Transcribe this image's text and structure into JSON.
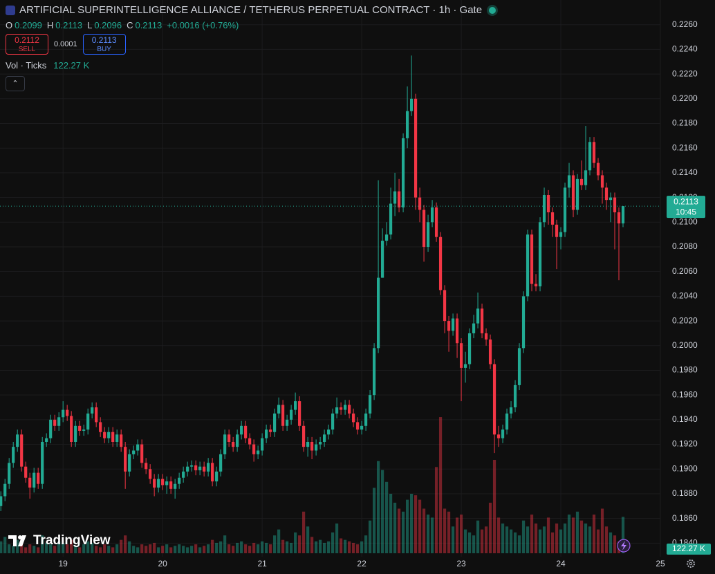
{
  "chart_data": {
    "type": "candlestick",
    "title": "ARTIFICIAL SUPERINTELLIGENCE ALLIANCE / TETHERUS PERPETUAL CONTRACT · 1h · Gate",
    "ohlc_labels": [
      "O",
      "H",
      "L",
      "C"
    ],
    "change": "+0.0016 (+0.76%)",
    "quote": {
      "sell": 0.2112,
      "sell_label": "SELL",
      "spread": 0.0001,
      "buy": 0.2113,
      "buy_label": "BUY"
    },
    "countdown": "10:45",
    "logo": "TradingView",
    "up_color": "#22ab94",
    "down_color": "#f23645",
    "grid": true,
    "x": [
      -15,
      -14,
      -13,
      -12,
      -11,
      -10,
      -9,
      -8,
      -7,
      -6,
      -5,
      -4,
      -3,
      -2,
      -1,
      0,
      1,
      2,
      3,
      4,
      5,
      6,
      7,
      8,
      9,
      10,
      11,
      12,
      13,
      14,
      15,
      16,
      17,
      18,
      19,
      20,
      21,
      22,
      23,
      24,
      25,
      26,
      27,
      28,
      29,
      30,
      31,
      32,
      33,
      34,
      35,
      36,
      37,
      38,
      39,
      40,
      41,
      42,
      43,
      44,
      45,
      46,
      47,
      48,
      49,
      50,
      51,
      52,
      53,
      54,
      55,
      56,
      57,
      58,
      59,
      60,
      61,
      62,
      63,
      64,
      65,
      66,
      67,
      68,
      69,
      70,
      71,
      72,
      73,
      74,
      75,
      76,
      77,
      78,
      79,
      80,
      81,
      82,
      83,
      84,
      85,
      86,
      87,
      88,
      89,
      90,
      91,
      92,
      93,
      94,
      95,
      96,
      97,
      98,
      99,
      100,
      101,
      102,
      103,
      104,
      105,
      106,
      107,
      108,
      109,
      110,
      111,
      112,
      113,
      114,
      115,
      116,
      117,
      118,
      119,
      120,
      121,
      122,
      123,
      124,
      125,
      126,
      127,
      128,
      129,
      130,
      131,
      132,
      133,
      134,
      135
    ],
    "open": [
      0.187,
      0.1878,
      0.1888,
      0.1905,
      0.1918,
      0.1928,
      0.1902,
      0.1893,
      0.1885,
      0.1897,
      0.1888,
      0.1922,
      0.1925,
      0.194,
      0.1935,
      0.1942,
      0.1948,
      0.1943,
      0.1922,
      0.1935,
      0.1931,
      0.1932,
      0.1945,
      0.195,
      0.1938,
      0.193,
      0.1925,
      0.193,
      0.1922,
      0.1928,
      0.1918,
      0.1898,
      0.1912,
      0.1915,
      0.192,
      0.1905,
      0.19,
      0.1892,
      0.1885,
      0.1892,
      0.1887,
      0.189,
      0.1884,
      0.1888,
      0.1893,
      0.1898,
      0.1902,
      0.1903,
      0.1899,
      0.1902,
      0.1898,
      0.1905,
      0.189,
      0.1898,
      0.1912,
      0.1928,
      0.1922,
      0.1918,
      0.1928,
      0.1935,
      0.1925,
      0.192,
      0.1912,
      0.1915,
      0.1925,
      0.1932,
      0.193,
      0.1945,
      0.1952,
      0.1935,
      0.194,
      0.1948,
      0.1955,
      0.1935,
      0.1918,
      0.1922,
      0.1915,
      0.192,
      0.1922,
      0.1928,
      0.1932,
      0.1945,
      0.195,
      0.1948,
      0.1952,
      0.1945,
      0.1938,
      0.1932,
      0.1935,
      0.1945,
      0.196,
      0.1998,
      0.2055,
      0.2085,
      0.209,
      0.2115,
      0.2125,
      0.2112,
      0.2168,
      0.219,
      0.22,
      0.212,
      0.211,
      0.208,
      0.21,
      0.2112,
      0.2088,
      0.2045,
      0.202,
      0.2012,
      0.2022,
      0.2002,
      0.1982,
      0.1985,
      0.201,
      0.2018,
      0.203,
      0.201,
      0.2005,
      0.1985,
      0.1928,
      0.1925,
      0.1932,
      0.1945,
      0.195,
      0.1968,
      0.1998,
      0.204,
      0.209,
      0.205,
      0.2048,
      0.21,
      0.2122,
      0.2108,
      0.2098,
      0.2088,
      0.2092,
      0.2128,
      0.2138,
      0.211,
      0.2135,
      0.213,
      0.2142,
      0.2165,
      0.2148,
      0.2138,
      0.2128,
      0.2118,
      0.212,
      0.2108,
      0.2099
    ],
    "high": [
      0.1882,
      0.1892,
      0.1909,
      0.1922,
      0.1932,
      0.1932,
      0.1906,
      0.1897,
      0.1901,
      0.1901,
      0.1926,
      0.1929,
      0.1944,
      0.1944,
      0.1946,
      0.1955,
      0.1952,
      0.1947,
      0.1939,
      0.1939,
      0.1936,
      0.1949,
      0.1954,
      0.1954,
      0.1942,
      0.1934,
      0.1934,
      0.1934,
      0.1932,
      0.1932,
      0.1922,
      0.1916,
      0.1919,
      0.1924,
      0.1924,
      0.1909,
      0.1904,
      0.1896,
      0.1896,
      0.1896,
      0.1894,
      0.1894,
      0.1892,
      0.1897,
      0.1902,
      0.1906,
      0.1907,
      0.1907,
      0.1906,
      0.1906,
      0.1909,
      0.1909,
      0.1902,
      0.1916,
      0.1932,
      0.1932,
      0.1926,
      0.1932,
      0.1939,
      0.1939,
      0.1929,
      0.1924,
      0.1919,
      0.1929,
      0.1936,
      0.1936,
      0.1949,
      0.1958,
      0.1956,
      0.1944,
      0.1952,
      0.1962,
      0.1959,
      0.1939,
      0.1926,
      0.1926,
      0.1924,
      0.1926,
      0.1932,
      0.1936,
      0.1949,
      0.1958,
      0.1954,
      0.1956,
      0.1956,
      0.1949,
      0.1942,
      0.1939,
      0.1949,
      0.1964,
      0.2002,
      0.2134,
      0.2095,
      0.21,
      0.2128,
      0.214,
      0.2135,
      0.2172,
      0.221,
      0.2235,
      0.2204,
      0.2128,
      0.2114,
      0.2106,
      0.2118,
      0.2116,
      0.2092,
      0.2049,
      0.2024,
      0.2026,
      0.2026,
      0.2006,
      0.1995,
      0.2014,
      0.2025,
      0.2043,
      0.2034,
      0.2014,
      0.2009,
      0.1989,
      0.1935,
      0.1936,
      0.1949,
      0.1955,
      0.1972,
      0.2002,
      0.2044,
      0.2094,
      0.2094,
      0.2058,
      0.2104,
      0.2128,
      0.2126,
      0.2112,
      0.2102,
      0.2096,
      0.2132,
      0.2148,
      0.2142,
      0.2139,
      0.215,
      0.2178,
      0.2169,
      0.2169,
      0.2152,
      0.2142,
      0.2132,
      0.2124,
      0.2124,
      0.2112,
      0.2113
    ],
    "low": [
      0.1866,
      0.1874,
      0.1884,
      0.1901,
      0.1914,
      0.1898,
      0.1889,
      0.1876,
      0.1881,
      0.1884,
      0.1884,
      0.1918,
      0.1921,
      0.1931,
      0.1931,
      0.1938,
      0.1939,
      0.1918,
      0.1918,
      0.1927,
      0.1927,
      0.1928,
      0.1941,
      0.1934,
      0.1926,
      0.1921,
      0.1921,
      0.1918,
      0.1918,
      0.1914,
      0.1884,
      0.1894,
      0.1908,
      0.1911,
      0.1901,
      0.1896,
      0.1888,
      0.1878,
      0.1881,
      0.1883,
      0.188,
      0.188,
      0.1876,
      0.1884,
      0.1889,
      0.1894,
      0.1898,
      0.1895,
      0.1895,
      0.1894,
      0.1894,
      0.1886,
      0.1886,
      0.1894,
      0.1908,
      0.1918,
      0.1914,
      0.1914,
      0.1924,
      0.1921,
      0.1916,
      0.1906,
      0.1908,
      0.1911,
      0.1921,
      0.1926,
      0.1926,
      0.1941,
      0.1931,
      0.1931,
      0.1936,
      0.1944,
      0.1931,
      0.1914,
      0.191,
      0.1908,
      0.1911,
      0.1916,
      0.1918,
      0.1924,
      0.1928,
      0.1941,
      0.1944,
      0.1944,
      0.1941,
      0.1934,
      0.1928,
      0.1928,
      0.1931,
      0.1941,
      0.1956,
      0.1994,
      0.2055,
      0.2081,
      0.2086,
      0.2105,
      0.2108,
      0.2108,
      0.216,
      0.2186,
      0.211,
      0.21,
      0.2068,
      0.2076,
      0.2096,
      0.2084,
      0.2041,
      0.201,
      0.1995,
      0.2008,
      0.199,
      0.1955,
      0.197,
      0.1981,
      0.2006,
      0.2014,
      0.2006,
      0.2,
      0.1981,
      0.1913,
      0.1918,
      0.1921,
      0.1928,
      0.1941,
      0.1946,
      0.1964,
      0.1994,
      0.2036,
      0.2044,
      0.2044,
      0.2044,
      0.2096,
      0.2098,
      0.2088,
      0.2062,
      0.2078,
      0.2088,
      0.212,
      0.2104,
      0.2106,
      0.2126,
      0.2126,
      0.2138,
      0.2144,
      0.2134,
      0.2115,
      0.211,
      0.21,
      0.2078,
      0.2053,
      0.2096
    ],
    "close": [
      0.1878,
      0.1888,
      0.1905,
      0.1918,
      0.1928,
      0.1902,
      0.1893,
      0.1885,
      0.1897,
      0.1888,
      0.1922,
      0.1925,
      0.194,
      0.1935,
      0.1942,
      0.1948,
      0.1943,
      0.1922,
      0.1935,
      0.1931,
      0.1932,
      0.1945,
      0.195,
      0.1938,
      0.193,
      0.1925,
      0.193,
      0.1922,
      0.1928,
      0.1918,
      0.1898,
      0.1912,
      0.1915,
      0.192,
      0.1905,
      0.19,
      0.1892,
      0.1885,
      0.1892,
      0.1887,
      0.189,
      0.1884,
      0.1888,
      0.1893,
      0.1898,
      0.1902,
      0.1903,
      0.1899,
      0.1902,
      0.1898,
      0.1905,
      0.189,
      0.1898,
      0.1912,
      0.1928,
      0.1922,
      0.1918,
      0.1928,
      0.1935,
      0.1925,
      0.192,
      0.1912,
      0.1915,
      0.1925,
      0.1932,
      0.193,
      0.1945,
      0.1952,
      0.1935,
      0.194,
      0.1948,
      0.1955,
      0.1935,
      0.1918,
      0.1922,
      0.1915,
      0.192,
      0.1922,
      0.1928,
      0.1932,
      0.1945,
      0.195,
      0.1948,
      0.1952,
      0.1945,
      0.1938,
      0.1932,
      0.1935,
      0.1945,
      0.196,
      0.1998,
      0.2055,
      0.2085,
      0.209,
      0.2115,
      0.2125,
      0.2112,
      0.2168,
      0.219,
      0.22,
      0.212,
      0.211,
      0.208,
      0.21,
      0.2112,
      0.2088,
      0.2045,
      0.202,
      0.2012,
      0.2022,
      0.2002,
      0.1982,
      0.1985,
      0.201,
      0.2018,
      0.203,
      0.201,
      0.2005,
      0.1985,
      0.1928,
      0.1925,
      0.1932,
      0.1945,
      0.195,
      0.1968,
      0.1998,
      0.204,
      0.209,
      0.205,
      0.2048,
      0.21,
      0.2122,
      0.2108,
      0.2098,
      0.2088,
      0.2092,
      0.2128,
      0.2138,
      0.211,
      0.2135,
      0.213,
      0.2142,
      0.2165,
      0.2148,
      0.2138,
      0.2128,
      0.2118,
      0.212,
      0.2108,
      0.2099,
      0.2113
    ],
    "volume": {
      "label": "Vol · Ticks",
      "last_label": "122.27 K",
      "vlim": [
        0,
        500
      ],
      "values": [
        40,
        55,
        30,
        25,
        45,
        35,
        20,
        30,
        25,
        20,
        60,
        35,
        30,
        25,
        40,
        35,
        30,
        45,
        25,
        20,
        30,
        40,
        35,
        25,
        20,
        30,
        25,
        20,
        30,
        45,
        60,
        40,
        25,
        20,
        30,
        25,
        30,
        35,
        20,
        25,
        30,
        20,
        25,
        30,
        25,
        20,
        25,
        30,
        20,
        25,
        30,
        45,
        35,
        40,
        60,
        30,
        25,
        35,
        40,
        30,
        25,
        35,
        30,
        40,
        35,
        30,
        60,
        80,
        45,
        40,
        35,
        70,
        60,
        140,
        90,
        55,
        40,
        45,
        35,
        40,
        70,
        100,
        50,
        45,
        40,
        35,
        30,
        40,
        60,
        110,
        220,
        310,
        280,
        240,
        200,
        170,
        150,
        140,
        180,
        200,
        195,
        180,
        150,
        130,
        120,
        290,
        458,
        150,
        140,
        90,
        120,
        130,
        80,
        70,
        60,
        110,
        80,
        90,
        170,
        314,
        120,
        100,
        90,
        80,
        70,
        60,
        110,
        90,
        130,
        100,
        80,
        90,
        120,
        70,
        100,
        80,
        100,
        130,
        120,
        140,
        110,
        100,
        90,
        130,
        80,
        150,
        90,
        70,
        60,
        40,
        122.27
      ]
    },
    "xlim": [
      -15.2,
      144
    ],
    "xticks": [
      {
        "value": 0,
        "label": "19"
      },
      {
        "value": 24,
        "label": "20"
      },
      {
        "value": 48,
        "label": "21"
      },
      {
        "value": 72,
        "label": "22"
      },
      {
        "value": 96,
        "label": "23"
      },
      {
        "value": 120,
        "label": "24"
      },
      {
        "value": 144,
        "label": "25"
      }
    ],
    "ylim": [
      0.1829,
      0.228
    ],
    "yticks": [
      {
        "value": 0.226,
        "label": "0.2260"
      },
      {
        "value": 0.224,
        "label": "0.2240"
      },
      {
        "value": 0.222,
        "label": "0.2220"
      },
      {
        "value": 0.22,
        "label": "0.2200"
      },
      {
        "value": 0.218,
        "label": "0.2180"
      },
      {
        "value": 0.216,
        "label": "0.2160"
      },
      {
        "value": 0.214,
        "label": "0.2140"
      },
      {
        "value": 0.212,
        "label": "0.2120"
      },
      {
        "value": 0.21,
        "label": "0.2100"
      },
      {
        "value": 0.208,
        "label": "0.2080"
      },
      {
        "value": 0.206,
        "label": "0.2060"
      },
      {
        "value": 0.204,
        "label": "0.2040"
      },
      {
        "value": 0.202,
        "label": "0.2020"
      },
      {
        "value": 0.2,
        "label": "0.2000"
      },
      {
        "value": 0.198,
        "label": "0.1980"
      },
      {
        "value": 0.196,
        "label": "0.1960"
      },
      {
        "value": 0.194,
        "label": "0.1940"
      },
      {
        "value": 0.192,
        "label": "0.1920"
      },
      {
        "value": 0.19,
        "label": "0.1900"
      },
      {
        "value": 0.188,
        "label": "0.1880"
      },
      {
        "value": 0.186,
        "label": "0.1860"
      },
      {
        "value": 0.184,
        "label": "0.1840"
      }
    ]
  }
}
